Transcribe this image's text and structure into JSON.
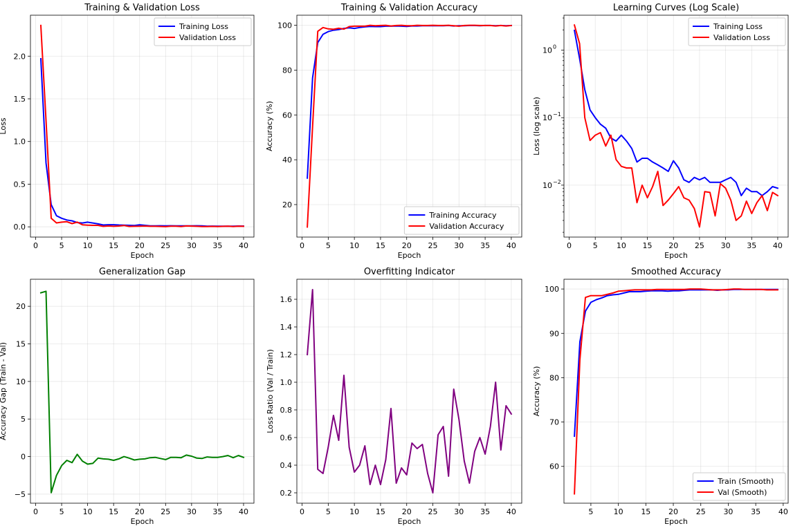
{
  "chart_data": [
    {
      "id": "p1",
      "type": "line",
      "title": "Training & Validation Loss",
      "xlabel": "Epoch",
      "ylabel": "Loss",
      "xlim": [
        -1,
        42
      ],
      "ylim": [
        -0.12,
        2.48
      ],
      "xticks": [
        0,
        5,
        10,
        15,
        20,
        25,
        30,
        35,
        40
      ],
      "yticks": [
        0.0,
        0.5,
        1.0,
        1.5,
        2.0
      ],
      "yticklabels": [
        "0.0",
        "0.5",
        "1.0",
        "1.5",
        "2.0"
      ],
      "legend": "top-right",
      "series": [
        {
          "name": "Training Loss",
          "color": "#0000ff",
          "x_start": 1,
          "values": [
            1.97,
            0.75,
            0.26,
            0.13,
            0.1,
            0.08,
            0.07,
            0.05,
            0.045,
            0.055,
            0.045,
            0.035,
            0.022,
            0.025,
            0.025,
            0.022,
            0.02,
            0.018,
            0.016,
            0.023,
            0.018,
            0.012,
            0.011,
            0.013,
            0.012,
            0.013,
            0.011,
            0.011,
            0.011,
            0.012,
            0.013,
            0.011,
            0.007,
            0.009,
            0.008,
            0.008,
            0.007,
            0.008,
            0.0095,
            0.009
          ]
        },
        {
          "name": "Validation Loss",
          "color": "#ff0000",
          "x_start": 1,
          "values": [
            2.36,
            1.25,
            0.1,
            0.046,
            0.055,
            0.06,
            0.038,
            0.055,
            0.024,
            0.019,
            0.018,
            0.018,
            0.0055,
            0.01,
            0.0065,
            0.0095,
            0.016,
            0.005,
            0.006,
            0.0075,
            0.0095,
            0.0065,
            0.006,
            0.0045,
            0.0024,
            0.008,
            0.0078,
            0.0035,
            0.0105,
            0.009,
            0.006,
            0.003,
            0.0035,
            0.0058,
            0.0038,
            0.0055,
            0.007,
            0.0042,
            0.0078,
            0.007
          ]
        }
      ]
    },
    {
      "id": "p2",
      "type": "line",
      "title": "Training & Validation Accuracy",
      "xlabel": "Epoch",
      "ylabel": "Accuracy (%)",
      "xlim": [
        -1,
        42
      ],
      "ylim": [
        5.5,
        104.5
      ],
      "xticks": [
        0,
        5,
        10,
        15,
        20,
        25,
        30,
        35,
        40
      ],
      "yticks": [
        20,
        40,
        60,
        80,
        100
      ],
      "yticklabels": [
        "20",
        "40",
        "60",
        "80",
        "100"
      ],
      "legend": "bottom-right",
      "series": [
        {
          "name": "Training Accuracy",
          "color": "#0000ff",
          "x_start": 1,
          "values": [
            31.8,
            76.5,
            92.3,
            96.0,
            97.2,
            97.8,
            98.1,
            98.6,
            98.9,
            98.6,
            99.0,
            99.3,
            99.5,
            99.4,
            99.4,
            99.6,
            99.6,
            99.7,
            99.6,
            99.5,
            99.7,
            99.7,
            99.8,
            99.8,
            99.8,
            99.8,
            99.8,
            99.9,
            99.7,
            99.8,
            99.8,
            99.9,
            99.9,
            99.8,
            99.9,
            99.9,
            99.8,
            99.9,
            99.8,
            99.9
          ]
        },
        {
          "name": "Validation Accuracy",
          "color": "#ff0000",
          "x_start": 1,
          "values": [
            10.0,
            54.7,
            97.3,
            99.0,
            98.4,
            98.2,
            98.7,
            98.3,
            99.4,
            99.6,
            99.6,
            99.6,
            100.0,
            99.8,
            99.9,
            100.0,
            99.7,
            99.9,
            100.0,
            99.8,
            99.8,
            100.0,
            99.9,
            99.9,
            100.0,
            99.9,
            99.9,
            100.0,
            99.8,
            99.6,
            99.9,
            100.0,
            100.0,
            99.9,
            99.9,
            99.9,
            99.7,
            99.9,
            99.7,
            99.9
          ]
        }
      ]
    },
    {
      "id": "p3",
      "type": "line",
      "yscale": "log",
      "title": "Learning Curves (Log Scale)",
      "xlabel": "Epoch",
      "ylabel": "Loss (log scale)",
      "xlim": [
        -1,
        42
      ],
      "ylim": [
        0.0017,
        3.3
      ],
      "xticks": [
        0,
        5,
        10,
        15,
        20,
        25,
        30,
        35,
        40
      ],
      "yticks": [
        1,
        0.1,
        0.01
      ],
      "yticklabels": [
        "10",
        "10",
        "10"
      ],
      "ytick_exponents": [
        "0",
        "−1",
        "−2"
      ],
      "legend": "top-right",
      "series_from": "p1"
    },
    {
      "id": "p4",
      "type": "line",
      "title": "Generalization Gap",
      "xlabel": "Epoch",
      "ylabel": "Accuracy Gap (Train - Val)",
      "xlim": [
        -1,
        42
      ],
      "ylim": [
        -6.2,
        23.6
      ],
      "xticks": [
        0,
        5,
        10,
        15,
        20,
        25,
        30,
        35,
        40
      ],
      "yticks": [
        -5,
        0,
        5,
        10,
        15,
        20
      ],
      "yticklabels": [
        "−5",
        "0",
        "5",
        "10",
        "15",
        "20"
      ],
      "series": [
        {
          "name": "Gap",
          "color": "#008000",
          "x_start": 1,
          "values": [
            21.8,
            22.0,
            -4.8,
            -2.5,
            -1.2,
            -0.5,
            -0.8,
            0.3,
            -0.6,
            -1.0,
            -0.9,
            -0.2,
            -0.3,
            -0.35,
            -0.5,
            -0.3,
            0.0,
            -0.2,
            -0.45,
            -0.35,
            -0.3,
            -0.15,
            -0.1,
            -0.25,
            -0.4,
            -0.1,
            -0.1,
            -0.15,
            0.2,
            0.05,
            -0.2,
            -0.25,
            -0.05,
            -0.1,
            -0.1,
            0.0,
            0.15,
            -0.15,
            0.15,
            -0.1
          ]
        }
      ]
    },
    {
      "id": "p5",
      "type": "line",
      "title": "Overfitting Indicator",
      "xlabel": "Epoch",
      "ylabel": "Loss Ratio (Val / Train)",
      "xlim": [
        -1,
        42
      ],
      "ylim": [
        0.125,
        1.745
      ],
      "xticks": [
        0,
        5,
        10,
        15,
        20,
        25,
        30,
        35,
        40
      ],
      "yticks": [
        0.2,
        0.4,
        0.6,
        0.8,
        1.0,
        1.2,
        1.4,
        1.6
      ],
      "yticklabels": [
        "0.2",
        "0.4",
        "0.6",
        "0.8",
        "1.0",
        "1.2",
        "1.4",
        "1.6"
      ],
      "series": [
        {
          "name": "Ratio",
          "color": "#800080",
          "x_start": 1,
          "values": [
            1.2,
            1.67,
            0.37,
            0.34,
            0.53,
            0.76,
            0.58,
            1.05,
            0.53,
            0.35,
            0.4,
            0.54,
            0.26,
            0.4,
            0.26,
            0.44,
            0.81,
            0.27,
            0.38,
            0.33,
            0.56,
            0.52,
            0.55,
            0.34,
            0.2,
            0.62,
            0.68,
            0.32,
            0.95,
            0.73,
            0.43,
            0.27,
            0.5,
            0.6,
            0.48,
            0.68,
            1.0,
            0.51,
            0.83,
            0.77
          ]
        }
      ]
    },
    {
      "id": "p6",
      "type": "line",
      "title": "Smoothed Accuracy",
      "xlabel": "Epoch",
      "ylabel": "Accuracy (%)",
      "xlim": [
        0.1,
        40.9
      ],
      "ylim": [
        51.7,
        102.2
      ],
      "xticks": [
        5,
        10,
        15,
        20,
        25,
        30,
        35,
        40
      ],
      "yticks": [
        60,
        70,
        80,
        90,
        100
      ],
      "yticklabels": [
        "60",
        "70",
        "80",
        "90",
        "100"
      ],
      "legend": "bottom-right",
      "series": [
        {
          "name": "Train (Smooth)",
          "color": "#0000ff",
          "x_start": 2,
          "values": [
            66.8,
            88.1,
            95.0,
            97.0,
            97.6,
            98.0,
            98.5,
            98.7,
            98.8,
            99.1,
            99.4,
            99.4,
            99.4,
            99.5,
            99.6,
            99.6,
            99.6,
            99.5,
            99.6,
            99.6,
            99.7,
            99.8,
            99.8,
            99.8,
            99.8,
            99.8,
            99.7,
            99.8,
            99.8,
            99.9,
            99.9,
            99.9,
            99.9,
            99.9,
            99.9,
            99.9,
            99.9,
            99.9
          ]
        },
        {
          "name": "Val (Smooth)",
          "color": "#ff0000",
          "x_start": 2,
          "values": [
            53.8,
            84.0,
            98.1,
            98.5,
            98.5,
            98.5,
            98.8,
            99.1,
            99.5,
            99.6,
            99.7,
            99.8,
            99.8,
            99.8,
            99.8,
            99.9,
            99.9,
            99.9,
            99.9,
            99.9,
            99.9,
            100.0,
            100.0,
            100.0,
            99.9,
            99.8,
            99.8,
            99.8,
            99.9,
            100.0,
            100.0,
            99.9,
            99.9,
            99.9,
            99.9,
            99.8,
            99.8,
            99.8
          ]
        }
      ]
    }
  ]
}
